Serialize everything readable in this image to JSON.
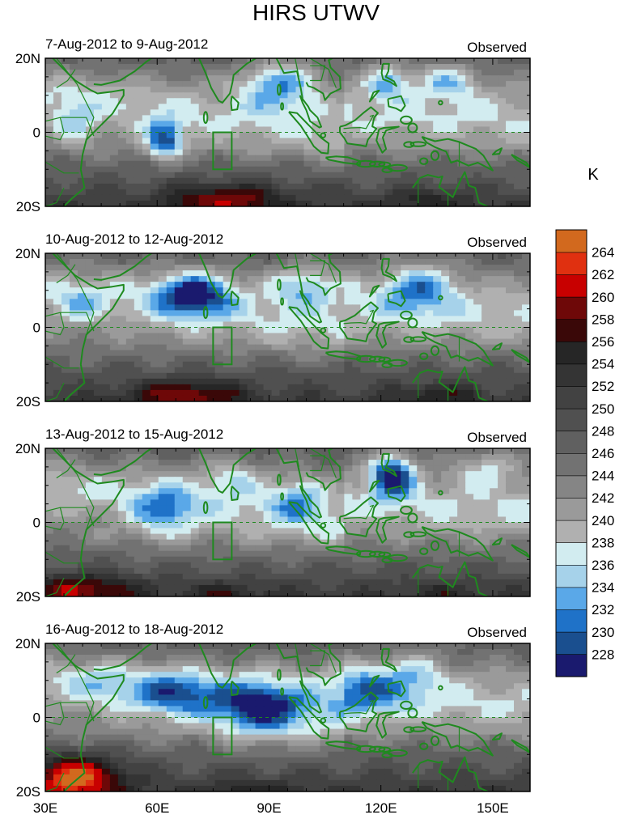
{
  "chart_data": {
    "type": "heatmap",
    "title": "HIRS UTWV",
    "units": "K",
    "x_ticks": [
      "30E",
      "60E",
      "90E",
      "120E",
      "150E"
    ],
    "x_tick_values": [
      30,
      60,
      90,
      120,
      150
    ],
    "xlim": [
      30,
      160
    ],
    "y_ticks": [
      "20N",
      "0",
      "20S"
    ],
    "y_tick_values": [
      20,
      0,
      -20
    ],
    "ylim": [
      -20,
      20
    ],
    "colorbar": {
      "levels": [
        228,
        230,
        232,
        234,
        236,
        238,
        240,
        242,
        244,
        246,
        248,
        250,
        252,
        254,
        256,
        258,
        260,
        262,
        264
      ],
      "colors": [
        "#1a1a6e",
        "#1a4f8f",
        "#1f72c8",
        "#5aa8e8",
        "#a6d2ea",
        "#d2ecf0",
        "#b0b0b0",
        "#9a9a9a",
        "#858585",
        "#727272",
        "#606060",
        "#505050",
        "#424242",
        "#343434",
        "#262626",
        "#3a0808",
        "#6e0808",
        "#c80000",
        "#e03010",
        "#d2691e"
      ]
    },
    "panels": [
      {
        "period": "7-Aug-2012 to 9-Aug-2012",
        "tag": "Observed"
      },
      {
        "period": "10-Aug-2012 to 12-Aug-2012",
        "tag": "Observed"
      },
      {
        "period": "13-Aug-2012 to 15-Aug-2012",
        "tag": "Observed"
      },
      {
        "period": "16-Aug-2012 to 18-Aug-2012",
        "tag": "Observed"
      }
    ]
  }
}
